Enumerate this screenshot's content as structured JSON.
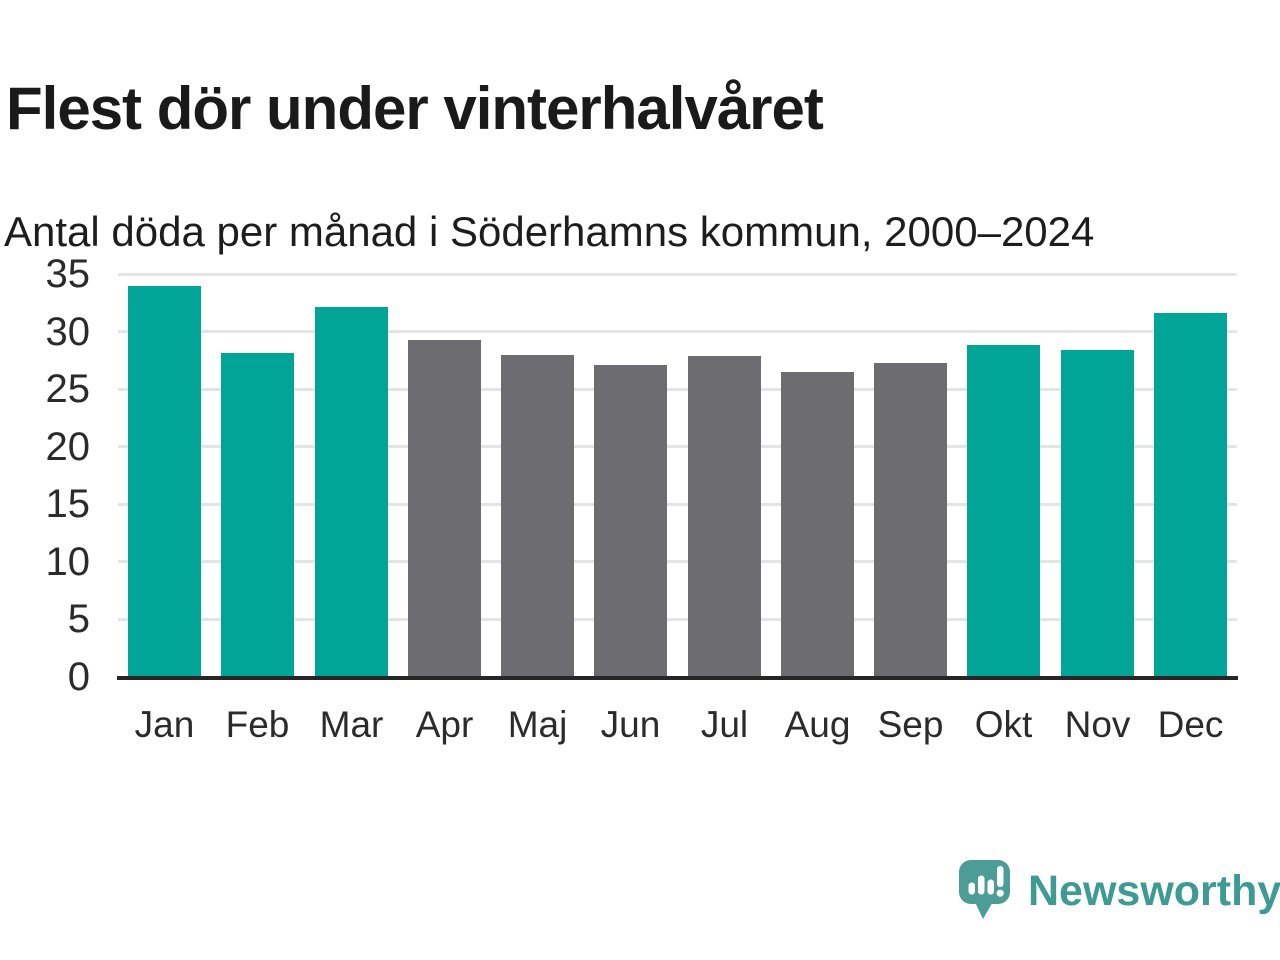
{
  "header": {
    "title": "Flest dör under vinterhalvåret",
    "subtitle": "Antal döda per månad i Söderhamns kommun, 2000–2024"
  },
  "chart_data": {
    "type": "bar",
    "title": "Flest dör under vinterhalvåret",
    "subtitle": "Antal döda per månad i Söderhamns kommun, 2000–2024",
    "categories": [
      "Jan",
      "Feb",
      "Mar",
      "Apr",
      "Maj",
      "Jun",
      "Jul",
      "Aug",
      "Sep",
      "Okt",
      "Nov",
      "Dec"
    ],
    "values": [
      34.0,
      28.1,
      32.1,
      29.3,
      28.0,
      27.1,
      27.9,
      26.5,
      27.3,
      28.8,
      28.4,
      31.6
    ],
    "highlighted": [
      true,
      true,
      true,
      false,
      false,
      false,
      false,
      false,
      false,
      true,
      true,
      true
    ],
    "colors": {
      "highlight": "#00a598",
      "default": "#6c6c71"
    },
    "ylim": [
      0,
      35
    ],
    "yticks": [
      0,
      5,
      10,
      15,
      20,
      25,
      30,
      35
    ],
    "grid": "horizontal",
    "gridline_color": "#e4e4e4",
    "axis_color": "#262626",
    "xlabel": "",
    "ylabel": "",
    "legend": "none"
  },
  "footer": {
    "brand": "Newsworthy",
    "logo_icon": "newsworthy-speech-bubble-bar-chart-icon",
    "brand_text_color": "#3e9b94",
    "bubble_color": "#4c9d96"
  }
}
